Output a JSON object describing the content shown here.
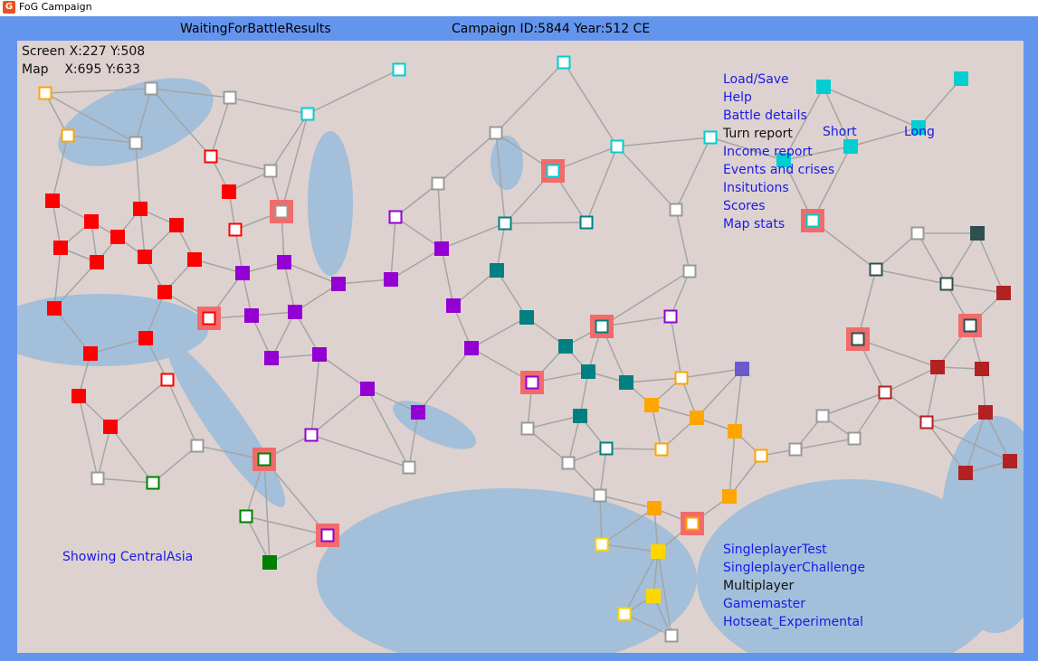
{
  "window": {
    "title": "FoG Campaign",
    "icon": "fog-app-icon"
  },
  "header": {
    "status": "WaitingForBattleResults",
    "campaign": "Campaign ID:5844 Year:512 CE"
  },
  "coords": {
    "screen": "Screen X:227 Y:508",
    "map": "Map    X:695 Y:633"
  },
  "menu": [
    {
      "label": "Load/Save",
      "active": true
    },
    {
      "label": "Help",
      "active": true
    },
    {
      "label": "Battle details",
      "active": true
    },
    {
      "label": "Turn report",
      "active": false
    },
    {
      "label": "Income report",
      "active": true
    },
    {
      "label": "Events and crises",
      "active": true
    },
    {
      "label": "Insitutions",
      "active": true
    },
    {
      "label": "Scores",
      "active": true
    },
    {
      "label": "Map stats",
      "active": true
    }
  ],
  "report_length": {
    "short": "Short",
    "long": "Long"
  },
  "showing": "Showing CentralAsia",
  "modes": [
    {
      "label": "SingleplayerTest",
      "active": true
    },
    {
      "label": "SingleplayerChallenge",
      "active": true
    },
    {
      "label": "Multiplayer",
      "active": false
    },
    {
      "label": "Gamemaster",
      "active": true
    },
    {
      "label": "Hotseat_Experimental",
      "active": true
    }
  ],
  "colors": {
    "frame": "#6495ed",
    "link": "#1a1ae6",
    "land": "#ddd2cf",
    "sea": "#a3bfd9",
    "factions": {
      "neutral": "#ffffff",
      "red": "#ff0000",
      "purple": "#9400d3",
      "teal": "#008080",
      "cyan": "#00ced1",
      "orange": "#ffa500",
      "gold": "#ffd700",
      "green": "#008000",
      "slate": "#2f4f4f",
      "brown": "#b22222",
      "slateblue": "#6a5acd",
      "battle": "#f26b6b"
    }
  }
}
